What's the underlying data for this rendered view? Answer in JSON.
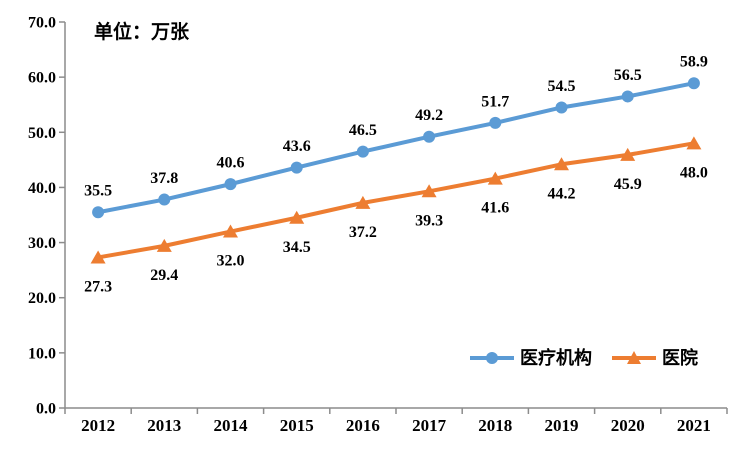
{
  "chart_data": {
    "type": "line",
    "title": "单位：万张",
    "categories": [
      "2012",
      "2013",
      "2014",
      "2015",
      "2016",
      "2017",
      "2018",
      "2019",
      "2020",
      "2021"
    ],
    "series": [
      {
        "name": "医疗机构",
        "color": "#5B9BD5",
        "marker": "circle",
        "label_position": "above",
        "values": [
          35.5,
          37.8,
          40.6,
          43.6,
          46.5,
          49.2,
          51.7,
          54.5,
          56.5,
          58.9
        ]
      },
      {
        "name": "医院",
        "color": "#ED7D31",
        "marker": "triangle",
        "label_position": "below",
        "values": [
          27.3,
          29.4,
          32.0,
          34.5,
          37.2,
          39.3,
          41.6,
          44.2,
          45.9,
          48.0
        ]
      }
    ],
    "ylim": [
      0,
      70
    ],
    "ytick_labels": [
      "0.0",
      "10.0",
      "20.0",
      "30.0",
      "40.0",
      "50.0",
      "60.0",
      "70.0"
    ],
    "xlabel": "",
    "ylabel": "",
    "grid": false,
    "legend_position": "bottom-right-inside",
    "axis_color": "#8C8C8C",
    "text_color": "#000000",
    "background_color": "#FFFFFF"
  }
}
